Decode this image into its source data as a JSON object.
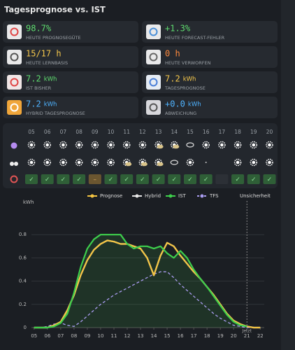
{
  "header": {
    "title": "Tagesprognose vs. IST"
  },
  "tiles": [
    {
      "value": "98.7%",
      "label": "HEUTE PROGNOSEGÜTE",
      "color": "#5fdd6f"
    },
    {
      "value": "+1.3%",
      "label": "HEUTE FORECAST-FEHLER",
      "color": "#5fdd6f"
    },
    {
      "value": "15/17 h",
      "label": "HEUTE LERNBASIS",
      "color": "#f6c84c"
    },
    {
      "value": "0 h",
      "label": "HEUTE VERWORFEN",
      "color": "#ff8a3d"
    },
    {
      "value": "7.2",
      "unit": "kWh",
      "label": "IST BISHER",
      "color": "#5fdd6f"
    },
    {
      "value": "7.2",
      "unit": "kWh",
      "label": "TAGESPROGNOSE",
      "color": "#f6c84c"
    },
    {
      "value": "7.2",
      "unit": "kWh",
      "label": "HYBRID TAGESPROGNOSE",
      "color": "#4fb3ff"
    },
    {
      "value": "+0.0",
      "unit": "kWh",
      "label": "ABWEICHUNG",
      "color": "#4fb3ff"
    }
  ],
  "hourly": {
    "hours": [
      "05",
      "06",
      "07",
      "08",
      "09",
      "10",
      "11",
      "12",
      "13",
      "14",
      "15",
      "16",
      "17",
      "18",
      "19",
      "20"
    ],
    "status": [
      "✓",
      "✓",
      "✓",
      "✓",
      "–",
      "✓",
      "✓",
      "✓",
      "✓",
      "✓",
      "✓",
      "✓",
      null,
      "✓",
      "✓",
      "✓"
    ]
  },
  "chart_data": {
    "type": "line",
    "ylabel": "kWh",
    "x": [
      5,
      5.5,
      6,
      6.5,
      7,
      7.5,
      8,
      8.5,
      9,
      9.5,
      10,
      10.5,
      11,
      11.5,
      12,
      12.5,
      13,
      13.5,
      14,
      14.5,
      15,
      15.5,
      16,
      16.5,
      17,
      17.5,
      18,
      18.5,
      19,
      19.5,
      20,
      20.5,
      21,
      21.5,
      22
    ],
    "series": [
      {
        "name": "Prognose",
        "color": "#f5c542",
        "values": [
          0,
          0,
          0,
          0.02,
          0.05,
          0.15,
          0.28,
          0.45,
          0.58,
          0.67,
          0.72,
          0.75,
          0.74,
          0.72,
          0.72,
          0.7,
          0.68,
          0.6,
          0.45,
          0.62,
          0.73,
          0.7,
          0.62,
          0.55,
          0.48,
          0.42,
          0.35,
          0.28,
          0.2,
          0.12,
          0.06,
          0.03,
          0.01,
          0,
          0
        ]
      },
      {
        "name": "Hybrid",
        "color": "#e8e8e8",
        "values": [
          0,
          0,
          0,
          0.02,
          0.05,
          0.15,
          0.28,
          0.45,
          0.58,
          0.67,
          0.72,
          0.75,
          0.74,
          0.72,
          0.72,
          0.7,
          0.68,
          0.6,
          0.45,
          0.62,
          0.73,
          0.7,
          0.62,
          0.55,
          0.48,
          0.42,
          0.35,
          0.28,
          0.2,
          0.12,
          0.06,
          0.03,
          0.01,
          0,
          0
        ]
      },
      {
        "name": "IST",
        "color": "#3ecf4c",
        "values": [
          0,
          0,
          0,
          0.01,
          0.04,
          0.12,
          0.3,
          0.52,
          0.68,
          0.76,
          0.8,
          0.8,
          0.8,
          0.8,
          0.72,
          0.68,
          0.7,
          0.7,
          0.68,
          0.7,
          0.64,
          0.6,
          0.66,
          0.6,
          0.5,
          0.42,
          0.35,
          0.27,
          0.19,
          0.11,
          0.05,
          0.02,
          0.01,
          null,
          null
        ]
      },
      {
        "name": "TFS",
        "color": "#a99cf0",
        "dashed": true,
        "values": [
          0,
          0,
          0.01,
          0.03,
          0.04,
          0.02,
          0.01,
          0.05,
          0.1,
          0.15,
          0.2,
          0.24,
          0.28,
          0.31,
          0.34,
          0.37,
          0.4,
          0.43,
          0.46,
          0.48,
          0.48,
          0.43,
          0.37,
          0.32,
          0.27,
          0.22,
          0.17,
          0.12,
          0.08,
          0.05,
          0.02,
          0.01,
          0,
          0,
          0
        ]
      }
    ],
    "band_label": "Unsicherheit",
    "now": {
      "x": 21,
      "label": "Jetzt"
    },
    "xlim": [
      4.8,
      22.3
    ],
    "xticks": [
      {
        "value": 5,
        "label": "05"
      },
      {
        "value": 6,
        "label": "06"
      },
      {
        "value": 7,
        "label": "07"
      },
      {
        "value": 8,
        "label": "08"
      },
      {
        "value": 9,
        "label": "09"
      },
      10,
      11,
      12,
      13,
      14,
      15,
      16,
      17,
      18,
      19,
      20,
      21,
      22
    ],
    "ylim": [
      0,
      1.0
    ],
    "yticks": [
      0,
      0.2,
      0.4,
      0.6,
      0.8
    ],
    "grid": true
  }
}
